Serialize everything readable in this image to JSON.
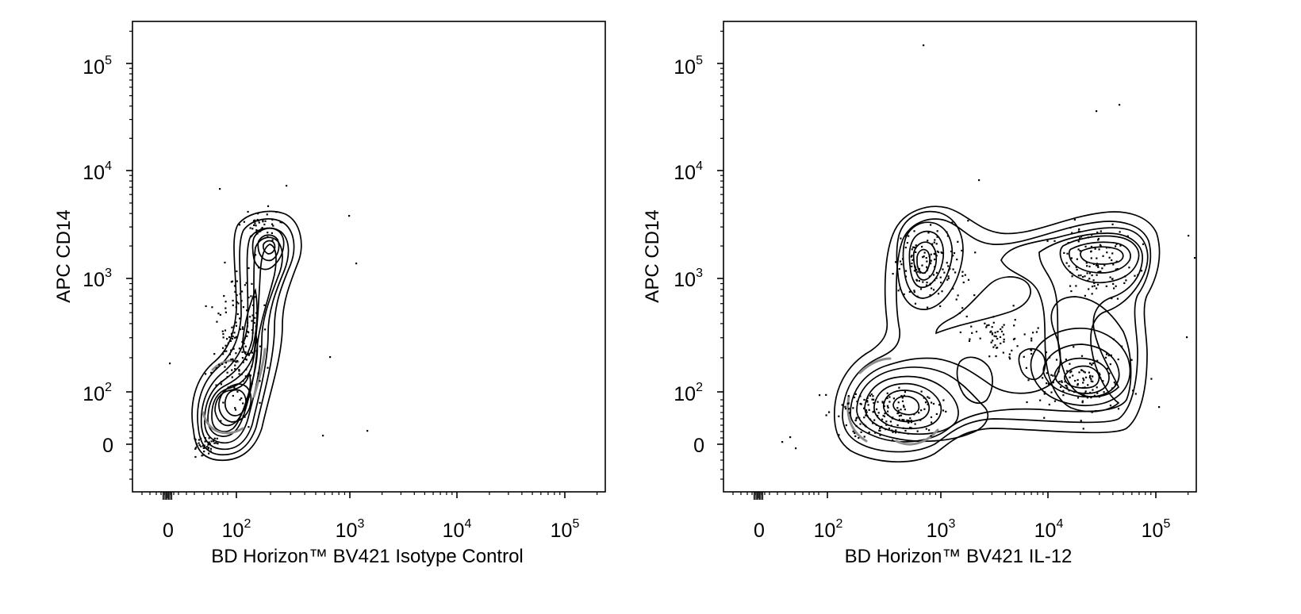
{
  "chart_data": [
    {
      "type": "contour",
      "xlabel": "BD Horizon™ BV421 Isotype Control",
      "ylabel": "APC CD14",
      "x_scale": "biexponential",
      "y_scale": "biexponential",
      "xlim": [
        -50,
        250000
      ],
      "ylim": [
        -60,
        250000
      ],
      "x_ticks": [
        {
          "value": 0,
          "base": "0",
          "exp": ""
        },
        {
          "value": 100,
          "base": "10",
          "exp": "2"
        },
        {
          "value": 1000,
          "base": "10",
          "exp": "3"
        },
        {
          "value": 10000,
          "base": "10",
          "exp": "4"
        },
        {
          "value": 100000,
          "base": "10",
          "exp": "5"
        }
      ],
      "y_ticks": [
        {
          "value": 0,
          "base": "0",
          "exp": ""
        },
        {
          "value": 100,
          "base": "10",
          "exp": "2"
        },
        {
          "value": 1000,
          "base": "10",
          "exp": "3"
        },
        {
          "value": 10000,
          "base": "10",
          "exp": "4"
        },
        {
          "value": 100000,
          "base": "10",
          "exp": "5"
        }
      ],
      "populations": [
        {
          "name": "",
          "x_center": 95,
          "y_center": 90
        },
        {
          "name": "",
          "x_center": 175,
          "y_center": 1800
        }
      ]
    },
    {
      "type": "contour",
      "xlabel": "BD Horizon™ BV421 IL-12",
      "ylabel": "APC CD14",
      "x_scale": "biexponential",
      "y_scale": "biexponential",
      "xlim": [
        -50,
        250000
      ],
      "ylim": [
        -60,
        250000
      ],
      "x_ticks": [
        {
          "value": 0,
          "base": "0",
          "exp": ""
        },
        {
          "value": 100,
          "base": "10",
          "exp": "2"
        },
        {
          "value": 1000,
          "base": "10",
          "exp": "3"
        },
        {
          "value": 10000,
          "base": "10",
          "exp": "4"
        },
        {
          "value": 100000,
          "base": "10",
          "exp": "5"
        }
      ],
      "y_ticks": [
        {
          "value": 0,
          "base": "0",
          "exp": ""
        },
        {
          "value": 100,
          "base": "10",
          "exp": "2"
        },
        {
          "value": 1000,
          "base": "10",
          "exp": "3"
        },
        {
          "value": 10000,
          "base": "10",
          "exp": "4"
        },
        {
          "value": 100000,
          "base": "10",
          "exp": "5"
        }
      ],
      "populations": [
        {
          "name": "",
          "x_center": 420,
          "y_center": 90
        },
        {
          "name": "",
          "x_center": 620,
          "y_center": 1400
        },
        {
          "name": "",
          "x_center": 25000,
          "y_center": 120
        },
        {
          "name": "",
          "x_center": 35000,
          "y_center": 1900
        }
      ]
    }
  ]
}
